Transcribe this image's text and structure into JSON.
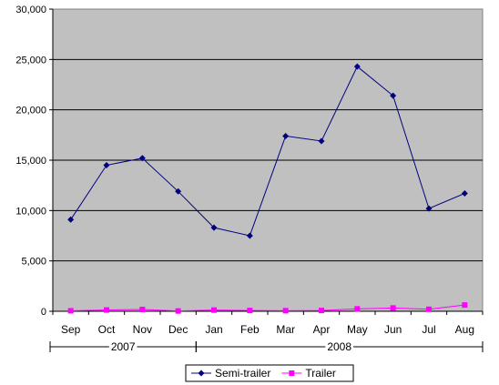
{
  "chart_data": {
    "type": "line",
    "title": "",
    "xlabel": "",
    "ylabel": "",
    "ylim": [
      0,
      30000
    ],
    "yticks": [
      "0",
      "5,000",
      "10,000",
      "15,000",
      "20,000",
      "25,000",
      "30,000"
    ],
    "categories": [
      "Sep",
      "Oct",
      "Nov",
      "Dec",
      "Jan",
      "Feb",
      "Mar",
      "Apr",
      "May",
      "Jun",
      "Jul",
      "Aug"
    ],
    "year_groups": [
      {
        "label": "2007",
        "start": 0,
        "end": 3
      },
      {
        "label": "2008",
        "start": 4,
        "end": 11
      }
    ],
    "series": [
      {
        "name": "Semi-trailer",
        "color": "#000080",
        "marker": "diamond",
        "values": [
          9100,
          14500,
          15200,
          11900,
          8300,
          7500,
          17400,
          16900,
          24300,
          21400,
          10200,
          11700
        ]
      },
      {
        "name": "Trailer",
        "color": "#ff00ff",
        "marker": "square",
        "values": [
          50,
          130,
          180,
          30,
          120,
          80,
          60,
          80,
          240,
          330,
          200,
          620
        ]
      }
    ],
    "plot_background": "#c0c0c0",
    "grid": true,
    "legend": "bottom"
  }
}
